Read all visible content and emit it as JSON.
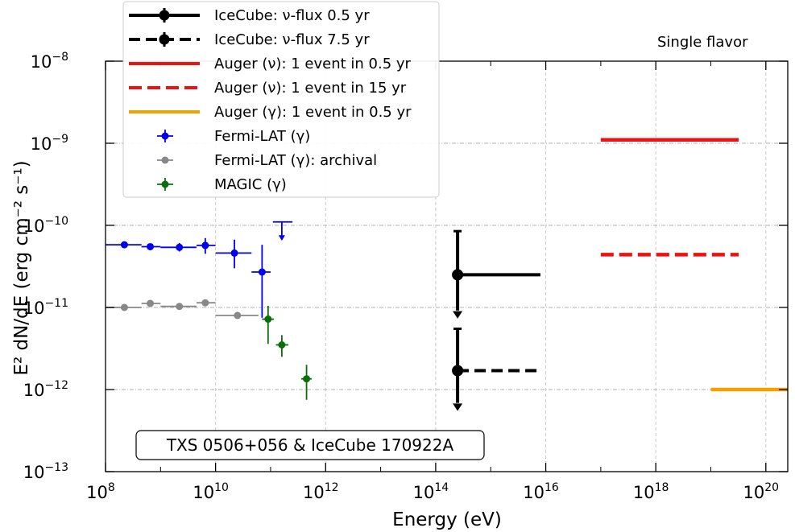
{
  "chart_data": {
    "type": "scatter",
    "xlabel": "Energy (eV)",
    "ylabel": "E² dN/dE (erg cm⁻² s⁻¹)",
    "xscale": "log",
    "yscale": "log",
    "xlim": [
      100000000.0,
      2.5e+20
    ],
    "ylim": [
      1e-13,
      1e-08
    ],
    "grid": true,
    "legend_position": "top-left",
    "x_ticks": [
      {
        "base": "10",
        "exp": "8",
        "value": 100000000.0
      },
      {
        "base": "10",
        "exp": "10",
        "value": 10000000000.0
      },
      {
        "base": "10",
        "exp": "12",
        "value": 1000000000000.0
      },
      {
        "base": "10",
        "exp": "14",
        "value": 100000000000000.0
      },
      {
        "base": "10",
        "exp": "16",
        "value": 1e+16
      },
      {
        "base": "10",
        "exp": "18",
        "value": 1e+18
      },
      {
        "base": "10",
        "exp": "20",
        "value": 1e+20
      }
    ],
    "y_ticks": [
      {
        "base": "10",
        "exp": "−8",
        "value": 1e-08
      },
      {
        "base": "10",
        "exp": "−9",
        "value": 1e-09
      },
      {
        "base": "10",
        "exp": "−10",
        "value": 1e-10
      },
      {
        "base": "10",
        "exp": "−11",
        "value": 1e-11
      },
      {
        "base": "10",
        "exp": "−12",
        "value": 1e-12
      },
      {
        "base": "10",
        "exp": "−13",
        "value": 1e-13
      }
    ],
    "corner_label": "Single flavor",
    "annotation": "TXS 0506+056  &  IceCube 170922A",
    "series": [
      {
        "name": "IceCube: ν-flux 0.5 yr",
        "kind": "icecube",
        "color": "#000000",
        "dash": false,
        "points": [
          {
            "x": 250000000000000.0,
            "y": 2.5e-11,
            "xlo": 250000000000000.0,
            "xhi": 8000000000000000.0,
            "ylo": 8e-12,
            "yhi": 8.5e-11,
            "upper_limit": true
          }
        ]
      },
      {
        "name": "IceCube: ν-flux 7.5 yr",
        "kind": "icecube",
        "color": "#000000",
        "dash": true,
        "points": [
          {
            "x": 250000000000000.0,
            "y": 1.7e-12,
            "xlo": 250000000000000.0,
            "xhi": 8000000000000000.0,
            "ylo": 6e-13,
            "yhi": 5.5e-12,
            "upper_limit": true
          }
        ]
      },
      {
        "name": "Auger (ν): 1 event in 0.5 yr",
        "kind": "segment",
        "color": "#ee1111",
        "dash": false,
        "segment": {
          "x1": 1e+17,
          "x2": 3.2e+19,
          "y": 1.1e-09
        }
      },
      {
        "name": "Auger (ν): 1 event in 15 yr",
        "kind": "segment",
        "color": "#ee1111",
        "dash": true,
        "segment": {
          "x1": 1e+17,
          "x2": 3.2e+19,
          "y": 4.4e-11
        }
      },
      {
        "name": "Auger (γ): 1 event in 0.5 yr",
        "kind": "segment",
        "color": "#f5a000",
        "dash": false,
        "segment": {
          "x1": 1e+19,
          "x2": 2.5e+20,
          "y": 1e-12
        }
      },
      {
        "name": "Fermi-LAT (γ)",
        "kind": "points",
        "color": "#0000ee",
        "points": [
          {
            "x": 220000000.0,
            "y": 5.8e-11,
            "xlo": 100000000.0,
            "xhi": 450000000.0,
            "ylo": 5.3e-11,
            "yhi": 6.3e-11
          },
          {
            "x": 650000000.0,
            "y": 5.5e-11,
            "xlo": 450000000.0,
            "xhi": 1000000000.0,
            "ylo": 5e-11,
            "yhi": 6e-11
          },
          {
            "x": 2200000000.0,
            "y": 5.4e-11,
            "xlo": 1000000000.0,
            "xhi": 4500000000.0,
            "ylo": 4.8e-11,
            "yhi": 6.1e-11
          },
          {
            "x": 6500000000.0,
            "y": 5.7e-11,
            "xlo": 4500000000.0,
            "xhi": 10000000000.0,
            "ylo": 4.5e-11,
            "yhi": 7e-11
          },
          {
            "x": 22000000000.0,
            "y": 4.6e-11,
            "xlo": 10000000000.0,
            "xhi": 45000000000.0,
            "ylo": 3e-11,
            "yhi": 6.7e-11
          },
          {
            "x": 70000000000.0,
            "y": 2.7e-11,
            "xlo": 45000000000.0,
            "xhi": 100000000000.0,
            "ylo": 7.5e-12,
            "yhi": 5.8e-11
          },
          {
            "x": 160000000000.0,
            "y": 1.1e-10,
            "xlo": 110000000000.0,
            "xhi": 250000000000.0,
            "ylo": 6.8e-11,
            "yhi": 1.1e-10,
            "upper_limit": true
          }
        ]
      },
      {
        "name": "Fermi-LAT (γ): archival",
        "kind": "points",
        "color": "#888888",
        "points": [
          {
            "x": 220000000.0,
            "y": 1e-11,
            "xlo": 100000000.0,
            "xhi": 450000000.0,
            "ylo": 1e-11,
            "yhi": 1e-11
          },
          {
            "x": 650000000.0,
            "y": 1.12e-11,
            "xlo": 450000000.0,
            "xhi": 1000000000.0,
            "ylo": 1.12e-11,
            "yhi": 1.12e-11
          },
          {
            "x": 2200000000.0,
            "y": 1.03e-11,
            "xlo": 1000000000.0,
            "xhi": 4500000000.0,
            "ylo": 1.03e-11,
            "yhi": 1.03e-11
          },
          {
            "x": 6500000000.0,
            "y": 1.14e-11,
            "xlo": 4500000000.0,
            "xhi": 10000000000.0,
            "ylo": 1.14e-11,
            "yhi": 1.14e-11
          },
          {
            "x": 25000000000.0,
            "y": 8e-12,
            "xlo": 10000000000.0,
            "xhi": 60000000000.0,
            "ylo": 8e-12,
            "yhi": 8e-12
          }
        ]
      },
      {
        "name": "MAGIC (γ)",
        "kind": "points",
        "color": "#0b6e0b",
        "points": [
          {
            "x": 90000000000.0,
            "y": 7.2e-12,
            "xlo": 70000000000.0,
            "xhi": 115000000000.0,
            "ylo": 3.6e-12,
            "yhi": 1.05e-11
          },
          {
            "x": 160000000000.0,
            "y": 3.5e-12,
            "xlo": 125000000000.0,
            "xhi": 210000000000.0,
            "ylo": 2.5e-12,
            "yhi": 4.6e-12
          },
          {
            "x": 450000000000.0,
            "y": 1.35e-12,
            "xlo": 360000000000.0,
            "xhi": 560000000000.0,
            "ylo": 7.5e-13,
            "yhi": 2e-12
          }
        ]
      }
    ]
  }
}
